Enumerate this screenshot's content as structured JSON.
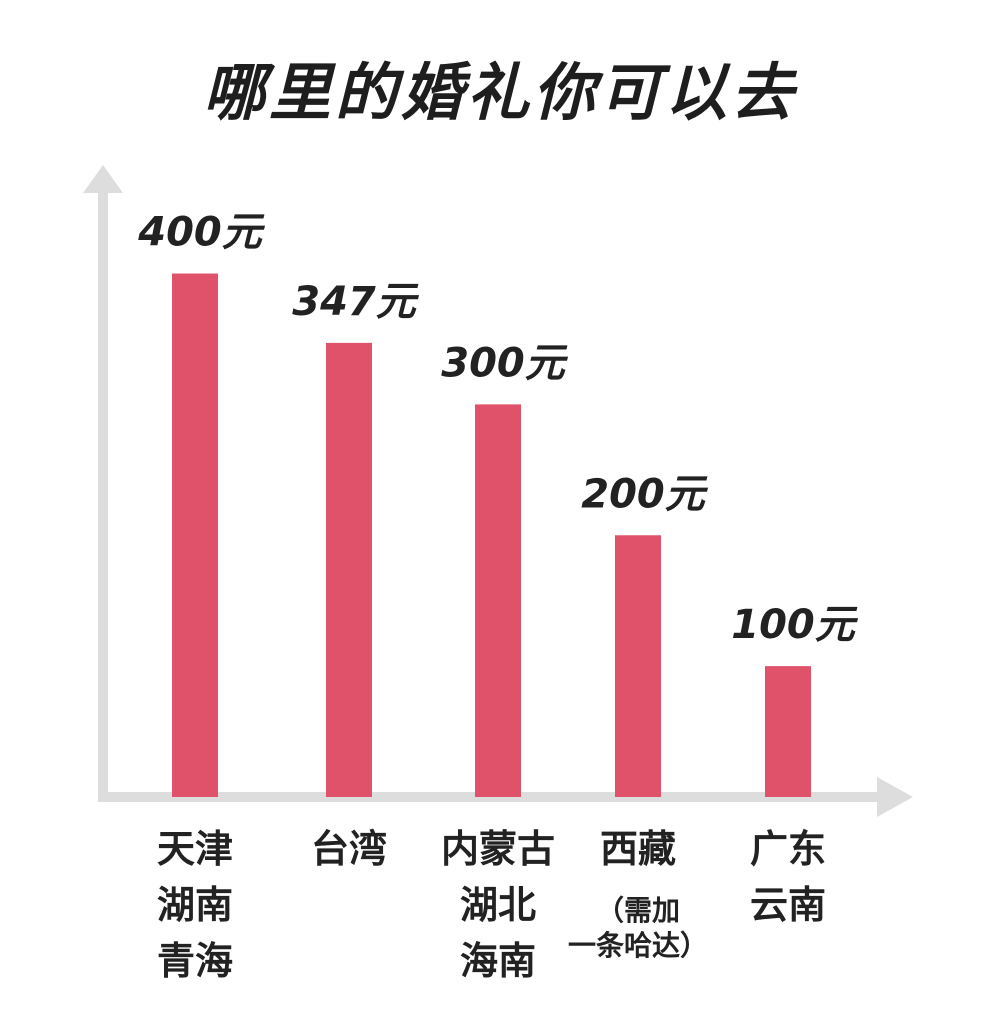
{
  "chart_data": {
    "type": "bar",
    "title": "哪里的婚礼你可以去",
    "xlabel": "",
    "ylabel": "",
    "ylim": [
      0,
      460
    ],
    "grid": false,
    "colors": {
      "bar": "#e0526a",
      "axis": "#dddddd",
      "text": "#222222"
    },
    "categories": [
      {
        "lines": [
          "天津",
          "湖南",
          "青海"
        ]
      },
      {
        "lines": [
          "台湾"
        ]
      },
      {
        "lines": [
          "内蒙古",
          "湖北",
          "海南"
        ]
      },
      {
        "lines": [
          "西藏",
          "（需加",
          "一条哈达）"
        ]
      },
      {
        "lines": [
          "广东",
          "云南"
        ]
      }
    ],
    "values": [
      400,
      347,
      300,
      200,
      100
    ],
    "value_labels": [
      "400元",
      "347元",
      "300元",
      "200元",
      "100元"
    ]
  }
}
